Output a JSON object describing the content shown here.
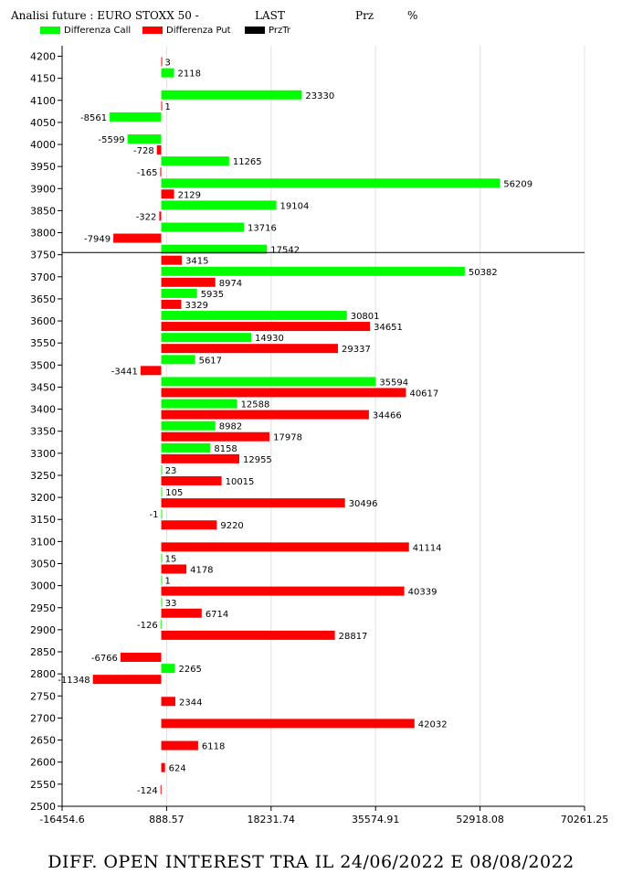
{
  "header": {
    "title": "Analisi future : EURO STOXX 50 -",
    "last_label": "LAST",
    "prz_label": "Prz",
    "pct_label": "%"
  },
  "legend": [
    {
      "label": "Differenza Call",
      "color": "#00ff00"
    },
    {
      "label": "Differenza Put",
      "color": "#ff0000"
    },
    {
      "label": "PrzTr",
      "color": "#000000"
    }
  ],
  "footer": {
    "caption": "DIFF. OPEN INTEREST TRA IL 24/06/2022 E 08/08/2022"
  },
  "chart_data": {
    "type": "bar",
    "orientation": "horizontal",
    "xlim": [
      -16454.6,
      70261.25
    ],
    "x_ticks": [
      "-16454.6",
      "888.57",
      "18231.74",
      "35574.91",
      "52918.08",
      "70261.25"
    ],
    "x_tick_values": [
      -16454.6,
      888.57,
      18231.74,
      35574.91,
      52918.08,
      70261.25
    ],
    "grid": true,
    "reference_line": 3755,
    "categories": [
      "4200",
      "4150",
      "4100",
      "4050",
      "4000",
      "3950",
      "3900",
      "3850",
      "3800",
      "3750",
      "3700",
      "3650",
      "3600",
      "3550",
      "3500",
      "3450",
      "3400",
      "3350",
      "3300",
      "3250",
      "3200",
      "3150",
      "3100",
      "3050",
      "3000",
      "2950",
      "2900",
      "2850",
      "2800",
      "2750",
      "2700",
      "2650",
      "2600",
      "2550",
      "2500"
    ],
    "series": [
      {
        "name": "Differenza Call",
        "color": "#00ff00",
        "values": [
          0,
          2118,
          23330,
          -8561,
          -5599,
          11265,
          56209,
          19104,
          13716,
          17542,
          50382,
          5935,
          30801,
          14930,
          5617,
          35594,
          12588,
          8982,
          8158,
          23,
          105,
          -1,
          0,
          15,
          1,
          33,
          -126,
          0,
          2265,
          0,
          0,
          0,
          0,
          0,
          0
        ],
        "labels": [
          "",
          "2118",
          "23330",
          "-8561",
          "-5599",
          "11265",
          "56209",
          "19104",
          "13716",
          "17542",
          "50382",
          "5935",
          "30801",
          "14930",
          "5617",
          "35594",
          "12588",
          "8982",
          "8158",
          "23",
          "105",
          "-1",
          "",
          "15",
          "1",
          "33",
          "-126",
          "",
          "2265",
          "",
          "",
          "",
          "",
          "",
          ""
        ]
      },
      {
        "name": "Differenza Put",
        "color": "#ff0000",
        "values": [
          3,
          0,
          1,
          0,
          -728,
          -165,
          2129,
          -322,
          -7949,
          3415,
          8974,
          3329,
          34651,
          29337,
          -3441,
          40617,
          34466,
          17978,
          12955,
          10015,
          30496,
          9220,
          41114,
          4178,
          40339,
          6714,
          28817,
          -6766,
          -11348,
          2344,
          42032,
          6118,
          624,
          -124,
          0
        ],
        "labels": [
          "3",
          "",
          "1",
          "",
          "-728",
          "-165",
          "2129",
          "-322",
          "-7949",
          "3415",
          "8974",
          "3329",
          "34651",
          "29337",
          "-3441",
          "40617",
          "34466",
          "17978",
          "12955",
          "10015",
          "30496",
          "9220",
          "41114",
          "4178",
          "40339",
          "6714",
          "28817",
          "-6766",
          "-11348",
          "2344",
          "42032",
          "6118",
          "624",
          "-124",
          ""
        ]
      }
    ]
  }
}
